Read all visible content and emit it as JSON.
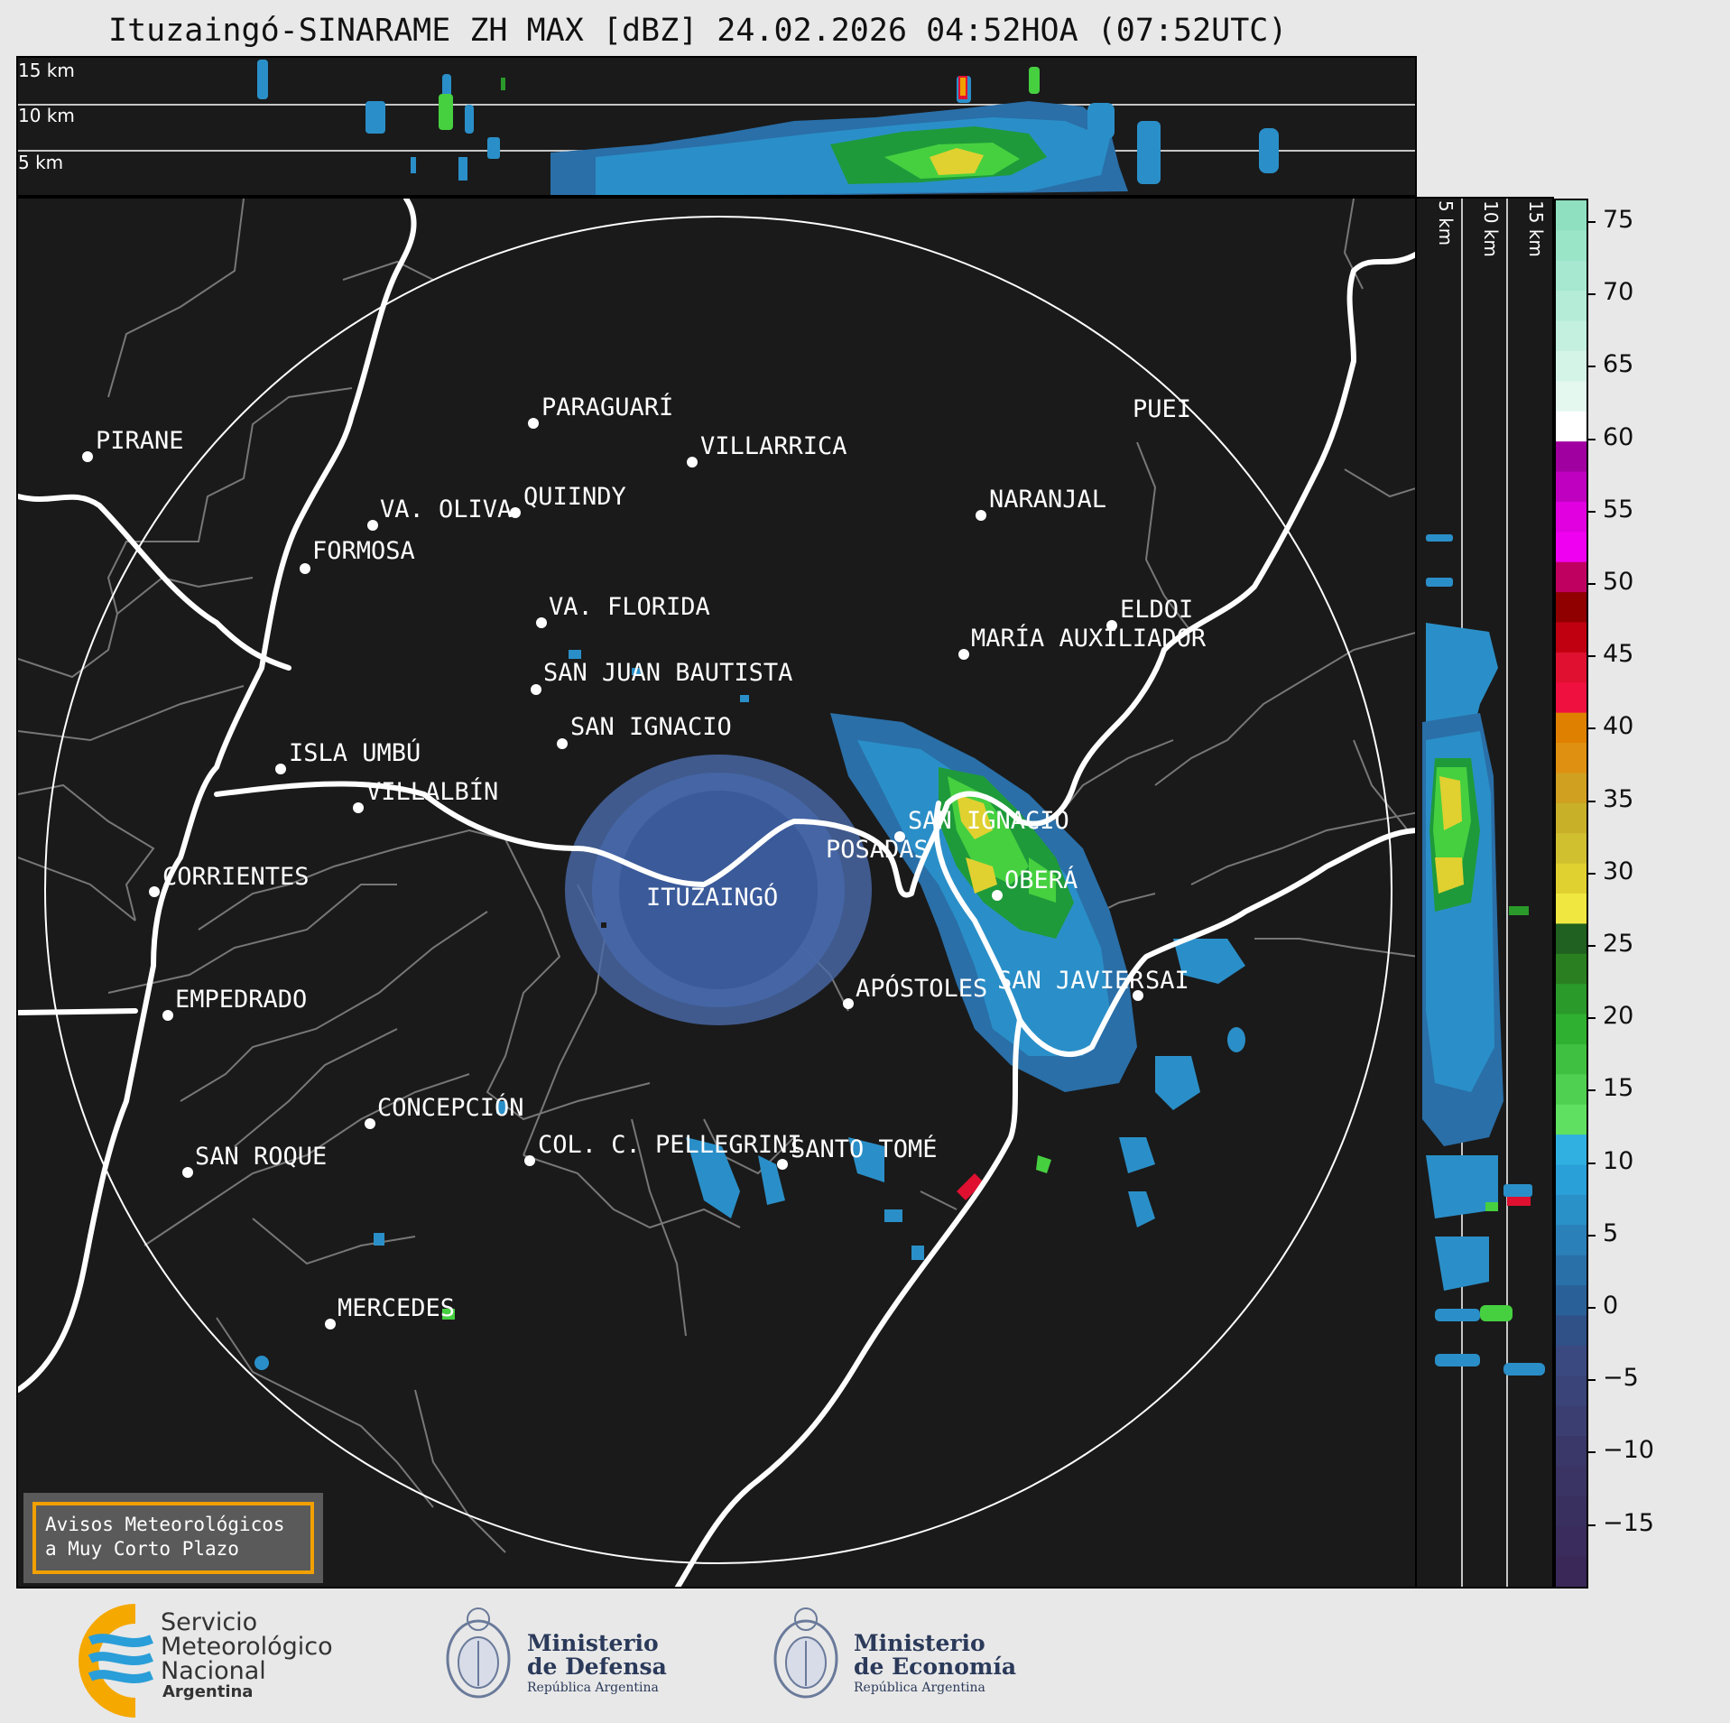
{
  "title": "Ituzaingó-SINARAME ZH MAX [dBZ] 24.02.2026 04:52HOA (07:52UTC)",
  "top_strip": {
    "altitude_labels": [
      "15 km",
      "10 km",
      "5 km"
    ]
  },
  "right_strip": {
    "altitude_labels": [
      "5 km",
      "10 km",
      "15 km"
    ]
  },
  "cities": [
    {
      "name": "PIRANE"
    },
    {
      "name": "PARAGUARÍ"
    },
    {
      "name": "VILLARRICA"
    },
    {
      "name": "PUEI"
    },
    {
      "name": "VA. OLIVA"
    },
    {
      "name": "QUIINDY"
    },
    {
      "name": "NARANJAL"
    },
    {
      "name": "FORMOSA"
    },
    {
      "name": "VA. FLORIDA"
    },
    {
      "name": "ELDOI"
    },
    {
      "name": "MARÍA AUXILIADOR"
    },
    {
      "name": "SAN JUAN BAUTISTA"
    },
    {
      "name": "SAN IGNACIO"
    },
    {
      "name": "ISLA UMBÚ"
    },
    {
      "name": "VILLALBÍN"
    },
    {
      "name": "SAN IGNACIO"
    },
    {
      "name": "POSADAS"
    },
    {
      "name": "CORRIENTES"
    },
    {
      "name": "ITUZAINGÓ"
    },
    {
      "name": "OBERÁ"
    },
    {
      "name": "APÓSTOLES"
    },
    {
      "name": "SAN JAVIER"
    },
    {
      "name": "SAI"
    },
    {
      "name": "EMPEDRADO"
    },
    {
      "name": "CONCEPCIÓN"
    },
    {
      "name": "COL. C. PELLEGRINI"
    },
    {
      "name": "SANTO TOMÉ"
    },
    {
      "name": "SAN ROQUE"
    },
    {
      "name": "MERCEDES"
    }
  ],
  "colorbar": {
    "unit": "dBZ",
    "ticks": [
      "75",
      "70",
      "65",
      "60",
      "55",
      "50",
      "45",
      "40",
      "35",
      "30",
      "25",
      "20",
      "15",
      "10",
      "5",
      "0",
      "−5",
      "−10",
      "−15"
    ]
  },
  "warning_box": {
    "line1": "Avisos Meteorológicos",
    "line2": "a Muy Corto Plazo"
  },
  "footer": {
    "smn_line1": "Servicio",
    "smn_line2": "Meteorológico",
    "smn_line3": "Nacional",
    "smn_country": "Argentina",
    "defensa_line1": "Ministerio",
    "defensa_line2": "de Defensa",
    "defensa_sub": "República Argentina",
    "economia_line1": "Ministerio",
    "economia_line2": "de Economía",
    "economia_sub": "República Argentina"
  }
}
